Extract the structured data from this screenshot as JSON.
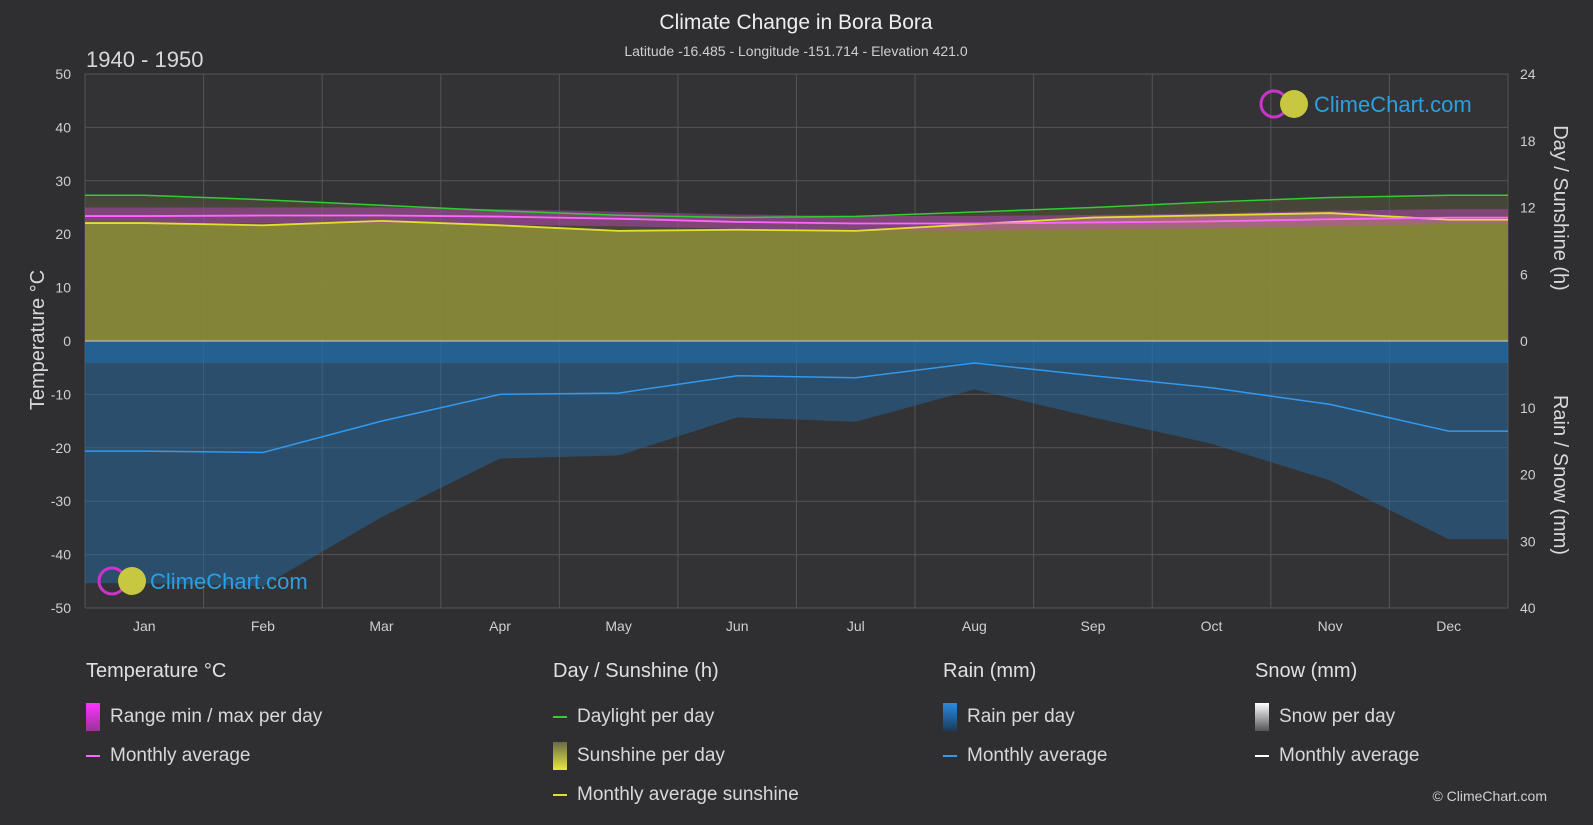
{
  "title": "Climate Change in Bora Bora",
  "subtitle": "Latitude -16.485 - Longitude -151.714 - Elevation 421.0",
  "period": "1940 - 1950",
  "watermark": "ClimeChart.com",
  "copyright": "© ClimeChart.com",
  "colors": {
    "background": "#2f2f31",
    "daylight": "#33cc33",
    "sunshine_fill": "#8f8f38",
    "sunshine_line": "#e0e030",
    "temp_range": "#c844c8",
    "temp_avg": "#ff66ff",
    "rain": "#1f6fae",
    "rain_line": "#3399ee",
    "snow": "#dddddd"
  },
  "legend": {
    "temperature": {
      "title": "Temperature °C",
      "range": "Range min / max per day",
      "avg": "Monthly average"
    },
    "sunshine": {
      "title": "Day / Sunshine (h)",
      "daylight": "Daylight per day",
      "sunshine": "Sunshine per day",
      "avg": "Monthly average sunshine"
    },
    "rain": {
      "title": "Rain (mm)",
      "per_day": "Rain per day",
      "avg": "Monthly average"
    },
    "snow": {
      "title": "Snow (mm)",
      "per_day": "Snow per day",
      "avg": "Monthly average"
    }
  },
  "chart_data": {
    "type": "area",
    "title": "Climate Change in Bora Bora",
    "subtitle": "Latitude -16.485 - Longitude -151.714 - Elevation 421.0",
    "categories": [
      "Jan",
      "Feb",
      "Mar",
      "Apr",
      "May",
      "Jun",
      "Jul",
      "Aug",
      "Sep",
      "Oct",
      "Nov",
      "Dec"
    ],
    "y_left": {
      "label": "Temperature °C",
      "range": [
        -50,
        50
      ],
      "ticks": [
        50,
        40,
        30,
        20,
        10,
        0,
        -10,
        -20,
        -30,
        -40,
        -50
      ]
    },
    "y_right_top": {
      "label": "Day / Sunshine (h)",
      "range": [
        0,
        24
      ],
      "ticks": [
        24,
        18,
        12,
        6,
        0
      ]
    },
    "y_right_bottom": {
      "label": "Rain / Snow (mm)",
      "range": [
        0,
        40
      ],
      "ticks": [
        0,
        10,
        20,
        30,
        40
      ]
    },
    "grid": true,
    "series": [
      {
        "name": "Daylight per day",
        "axis": "hours",
        "values": [
          13.1,
          12.7,
          12.2,
          11.7,
          11.3,
          11.1,
          11.2,
          11.6,
          12.0,
          12.5,
          12.9,
          13.1
        ]
      },
      {
        "name": "Monthly average sunshine",
        "axis": "hours",
        "values": [
          10.6,
          10.4,
          10.8,
          10.4,
          9.9,
          10.0,
          9.9,
          10.5,
          11.1,
          11.3,
          11.5,
          10.9
        ]
      },
      {
        "name": "Temperature monthly average",
        "axis": "temperature",
        "values": [
          23.4,
          23.5,
          23.5,
          23.3,
          22.9,
          22.3,
          22.0,
          22.0,
          22.2,
          22.4,
          22.8,
          23.1
        ]
      },
      {
        "name": "Temperature max per day",
        "axis": "temperature",
        "values": [
          25.0,
          25.0,
          25.0,
          24.7,
          24.2,
          23.7,
          23.4,
          23.4,
          23.6,
          23.9,
          24.4,
          24.7
        ]
      },
      {
        "name": "Temperature min per day",
        "axis": "temperature",
        "values": [
          22.0,
          22.0,
          22.0,
          21.8,
          21.5,
          21.0,
          20.7,
          20.7,
          20.9,
          21.1,
          21.5,
          21.9
        ]
      },
      {
        "name": "Rain monthly average",
        "axis": "rain",
        "values": [
          16.5,
          16.7,
          12.0,
          8.0,
          7.8,
          5.2,
          5.5,
          3.3,
          5.2,
          7.0,
          9.5,
          13.5
        ]
      }
    ]
  }
}
